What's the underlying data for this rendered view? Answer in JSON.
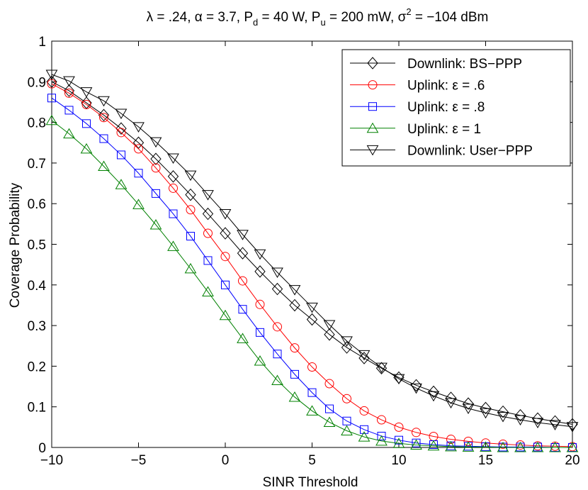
{
  "chart_data": {
    "type": "line",
    "title": {
      "lambda_part": "λ = .24, ",
      "alpha_part": "α = 3.7, P",
      "pd_sub": "d",
      "pd_value": " = 40 W, P",
      "pu_sub": "u",
      "pu_value": " = 200 mW, σ",
      "sigma_sup": "2",
      "sigma_value": " = −104 dBm"
    },
    "xlabel": "SINR Threshold",
    "ylabel": "Coverage Probability",
    "xlim": [
      -10,
      20
    ],
    "ylim": [
      0,
      1
    ],
    "x_ticks": [
      -10,
      -5,
      0,
      5,
      10,
      15,
      20
    ],
    "x_tick_labels": [
      "−10",
      "−5",
      "0",
      "5",
      "10",
      "15",
      "20"
    ],
    "y_ticks": [
      0,
      0.1,
      0.2,
      0.3,
      0.4,
      0.5,
      0.6,
      0.7,
      0.8,
      0.9,
      1
    ],
    "y_tick_labels": [
      "0",
      "0.1",
      "0.2",
      "0.3",
      "0.4",
      "0.5",
      "0.6",
      "0.7",
      "0.8",
      "0.9",
      "1"
    ],
    "grid": false,
    "legend_position": "top-right",
    "x": [
      -10,
      -9,
      -8,
      -7,
      -6,
      -5,
      -4,
      -3,
      -2,
      -1,
      0,
      1,
      2,
      3,
      4,
      5,
      6,
      7,
      8,
      9,
      10,
      11,
      12,
      13,
      14,
      15,
      16,
      17,
      18,
      19,
      20
    ],
    "series": [
      {
        "name": "Downlink: BS−PPP",
        "color": "#000000",
        "marker": "diamond",
        "values": [
          0.9,
          0.878,
          0.848,
          0.818,
          0.785,
          0.75,
          0.71,
          0.667,
          0.622,
          0.575,
          0.527,
          0.478,
          0.433,
          0.39,
          0.35,
          0.315,
          0.278,
          0.246,
          0.22,
          0.195,
          0.172,
          0.153,
          0.137,
          0.122,
          0.108,
          0.097,
          0.088,
          0.079,
          0.071,
          0.064,
          0.057
        ]
      },
      {
        "name": "Uplink: ε = .6",
        "color": "#ff0000",
        "marker": "circle",
        "values": [
          0.895,
          0.872,
          0.844,
          0.812,
          0.775,
          0.735,
          0.688,
          0.638,
          0.585,
          0.527,
          0.47,
          0.41,
          0.352,
          0.297,
          0.245,
          0.198,
          0.157,
          0.12,
          0.09,
          0.068,
          0.05,
          0.037,
          0.027,
          0.02,
          0.015,
          0.011,
          0.008,
          0.006,
          0.004,
          0.003,
          0.002
        ]
      },
      {
        "name": "Uplink: ε = .8",
        "color": "#0000ff",
        "marker": "square",
        "values": [
          0.86,
          0.83,
          0.797,
          0.76,
          0.72,
          0.675,
          0.625,
          0.575,
          0.52,
          0.46,
          0.4,
          0.34,
          0.283,
          0.23,
          0.18,
          0.135,
          0.095,
          0.065,
          0.044,
          0.028,
          0.018,
          0.011,
          0.007,
          0.004,
          0.003,
          0.002,
          0.001,
          0.001,
          0.001,
          0.0,
          0.0
        ]
      },
      {
        "name": "Uplink: ε = 1",
        "color": "#008000",
        "marker": "triangle-up",
        "values": [
          0.805,
          0.772,
          0.735,
          0.692,
          0.647,
          0.598,
          0.548,
          0.495,
          0.44,
          0.383,
          0.325,
          0.268,
          0.213,
          0.165,
          0.124,
          0.09,
          0.062,
          0.041,
          0.026,
          0.016,
          0.01,
          0.006,
          0.004,
          0.002,
          0.001,
          0.001,
          0.0,
          0.0,
          0.0,
          0.0,
          0.0
        ]
      },
      {
        "name": "Downlink: User−PPP",
        "color": "#000000",
        "marker": "triangle-down",
        "values": [
          0.918,
          0.902,
          0.875,
          0.853,
          0.822,
          0.789,
          0.752,
          0.712,
          0.67,
          0.622,
          0.575,
          0.524,
          0.476,
          0.431,
          0.388,
          0.345,
          0.302,
          0.262,
          0.228,
          0.197,
          0.169,
          0.146,
          0.127,
          0.11,
          0.096,
          0.085,
          0.076,
          0.068,
          0.061,
          0.056,
          0.051
        ]
      }
    ]
  }
}
